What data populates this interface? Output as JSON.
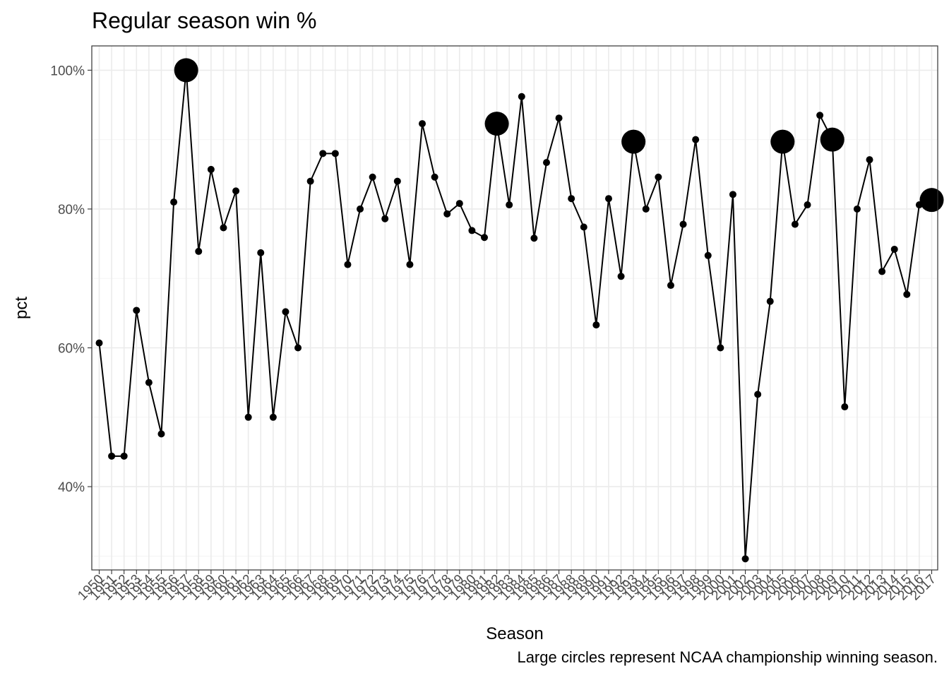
{
  "chart_data": {
    "type": "line",
    "title": "Regular season win %",
    "xlabel": "Season",
    "ylabel": "pct",
    "caption": "Large circles represent NCAA championship winning season.",
    "ylim": [
      0.28,
      1.035
    ],
    "y_ticks": [
      {
        "value": 0.4,
        "label": "40%"
      },
      {
        "value": 0.6,
        "label": "60%"
      },
      {
        "value": 0.8,
        "label": "80%"
      },
      {
        "value": 1.0,
        "label": "100%"
      }
    ],
    "y_minor": [
      0.3,
      0.5,
      0.7,
      0.9
    ],
    "grid": true,
    "legend": "none",
    "series": [
      {
        "x": [
          "1950",
          "1951",
          "1952",
          "1953",
          "1954",
          "1955",
          "1956",
          "1957",
          "1958",
          "1959",
          "1960",
          "1961",
          "1962",
          "1963",
          "1964",
          "1965",
          "1966",
          "1967",
          "1968",
          "1969",
          "1970",
          "1971",
          "1972",
          "1973",
          "1974",
          "1975",
          "1976",
          "1977",
          "1978",
          "1979",
          "1980",
          "1981",
          "1982",
          "1983",
          "1984",
          "1985",
          "1986",
          "1987",
          "1988",
          "1989",
          "1990",
          "1991",
          "1992",
          "1993",
          "1994",
          "1995",
          "1996",
          "1997",
          "1998",
          "1999",
          "2000",
          "2001",
          "2002",
          "2003",
          "2004",
          "2005",
          "2006",
          "2007",
          "2008",
          "2009",
          "2010",
          "2011",
          "2012",
          "2013",
          "2014",
          "2015",
          "2016",
          "2017"
        ],
        "values": [
          0.607,
          0.444,
          0.444,
          0.654,
          0.55,
          0.476,
          0.81,
          1.0,
          0.739,
          0.857,
          0.773,
          0.826,
          0.5,
          0.737,
          0.5,
          0.652,
          0.6,
          0.84,
          0.88,
          0.88,
          0.72,
          0.8,
          0.846,
          0.786,
          0.84,
          0.72,
          0.923,
          0.846,
          0.793,
          0.808,
          0.769,
          0.759,
          0.923,
          0.806,
          0.962,
          0.758,
          0.867,
          0.931,
          0.815,
          0.774,
          0.633,
          0.815,
          0.703,
          0.897,
          0.8,
          0.846,
          0.69,
          0.778,
          0.9,
          0.733,
          0.6,
          0.821,
          0.296,
          0.533,
          0.667,
          0.897,
          0.778,
          0.806,
          0.935,
          0.9,
          0.515,
          0.8,
          0.871,
          0.71,
          0.742,
          0.677,
          0.806,
          0.813
        ],
        "champion": [
          "1957",
          "1982",
          "1993",
          "2005",
          "2009",
          "2017"
        ]
      }
    ]
  }
}
